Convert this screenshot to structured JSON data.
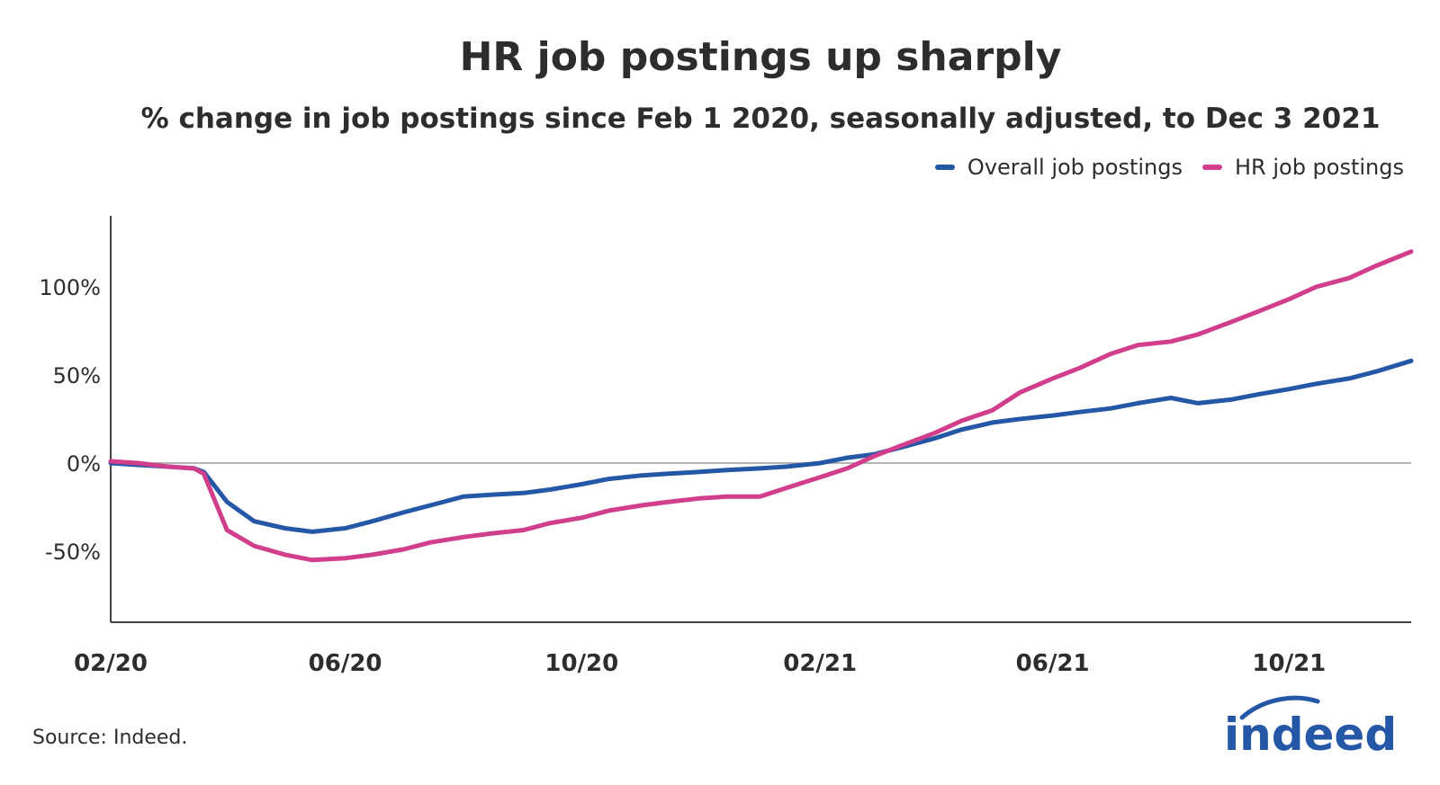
{
  "chart_data": {
    "type": "line",
    "title": "HR job postings up sharply",
    "subtitle": "% change in job postings since Feb 1 2020, seasonally adjusted, to Dec 3 2021",
    "x_tick_labels": [
      "02/20",
      "06/20",
      "10/20",
      "02/21",
      "06/21",
      "10/21"
    ],
    "y_tick_labels": [
      "100%",
      "50%",
      "0%",
      "-50%"
    ],
    "y_ticks": [
      100,
      50,
      0,
      -50
    ],
    "ylim": [
      -90,
      140
    ],
    "xlim": [
      "2020-02-01",
      "2021-12-03"
    ],
    "grid": "zero line only",
    "legend_position": "top-right",
    "series": [
      {
        "name": "Overall job postings",
        "color": "#2557a7",
        "x": [
          "2020-02-01",
          "2020-02-15",
          "2020-03-01",
          "2020-03-15",
          "2020-03-20",
          "2020-04-01",
          "2020-04-15",
          "2020-05-01",
          "2020-05-15",
          "2020-06-01",
          "2020-06-15",
          "2020-07-01",
          "2020-07-15",
          "2020-08-01",
          "2020-08-15",
          "2020-09-01",
          "2020-09-15",
          "2020-10-01",
          "2020-10-15",
          "2020-11-01",
          "2020-11-15",
          "2020-12-01",
          "2020-12-15",
          "2021-01-01",
          "2021-01-15",
          "2021-02-01",
          "2021-02-15",
          "2021-03-01",
          "2021-03-15",
          "2021-04-01",
          "2021-04-15",
          "2021-05-01",
          "2021-05-15",
          "2021-06-01",
          "2021-06-15",
          "2021-07-01",
          "2021-07-15",
          "2021-08-01",
          "2021-08-15",
          "2021-09-01",
          "2021-09-15",
          "2021-10-01",
          "2021-10-15",
          "2021-11-01",
          "2021-11-15",
          "2021-12-03"
        ],
        "values": [
          0,
          -1,
          -2,
          -3,
          -5,
          -22,
          -33,
          -37,
          -39,
          -37,
          -33,
          -28,
          -24,
          -19,
          -18,
          -17,
          -15,
          -12,
          -9,
          -7,
          -6,
          -5,
          -4,
          -3,
          -2,
          0,
          3,
          5,
          9,
          14,
          19,
          23,
          25,
          27,
          29,
          31,
          34,
          37,
          34,
          36,
          39,
          42,
          45,
          48,
          52,
          58
        ]
      },
      {
        "name": "HR job postings",
        "color": "#d13e8c",
        "x": [
          "2020-02-01",
          "2020-02-15",
          "2020-03-01",
          "2020-03-15",
          "2020-03-20",
          "2020-04-01",
          "2020-04-15",
          "2020-05-01",
          "2020-05-15",
          "2020-06-01",
          "2020-06-15",
          "2020-07-01",
          "2020-07-15",
          "2020-08-01",
          "2020-08-15",
          "2020-09-01",
          "2020-09-15",
          "2020-10-01",
          "2020-10-15",
          "2020-11-01",
          "2020-11-15",
          "2020-12-01",
          "2020-12-15",
          "2021-01-01",
          "2021-01-15",
          "2021-02-01",
          "2021-02-15",
          "2021-03-01",
          "2021-03-15",
          "2021-04-01",
          "2021-04-15",
          "2021-05-01",
          "2021-05-15",
          "2021-06-01",
          "2021-06-15",
          "2021-07-01",
          "2021-07-15",
          "2021-08-01",
          "2021-08-15",
          "2021-09-01",
          "2021-09-15",
          "2021-10-01",
          "2021-10-15",
          "2021-11-01",
          "2021-11-15",
          "2021-12-03"
        ],
        "values": [
          1,
          0,
          -2,
          -3,
          -6,
          -38,
          -47,
          -52,
          -55,
          -54,
          -52,
          -49,
          -45,
          -42,
          -40,
          -38,
          -34,
          -31,
          -27,
          -24,
          -22,
          -20,
          -19,
          -19,
          -14,
          -8,
          -3,
          4,
          10,
          17,
          24,
          30,
          40,
          48,
          54,
          62,
          67,
          69,
          73,
          80,
          86,
          93,
          100,
          105,
          112,
          120
        ]
      }
    ]
  },
  "legend": {
    "items": [
      {
        "label": "Overall job postings",
        "color": "#2557a7"
      },
      {
        "label": "HR job postings",
        "color": "#d13e8c"
      }
    ]
  },
  "footer": {
    "source": "Source: Indeed.",
    "logo_text": "indeed",
    "logo_color": "#2557a7"
  }
}
